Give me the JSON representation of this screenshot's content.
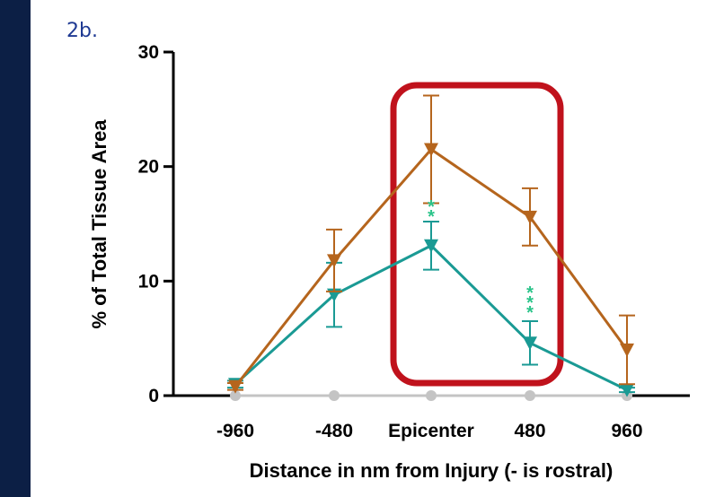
{
  "panel_label": "2b.",
  "chart_data": {
    "type": "line",
    "title": "",
    "xlabel": "Distance in nm from Injury (- is rostral)",
    "ylabel": "% of Total Tissue Area",
    "categories": [
      "-960",
      "-480",
      "Epicenter",
      "480",
      "960"
    ],
    "yticks": [
      0,
      10,
      20,
      30
    ],
    "ylim": [
      0,
      30
    ],
    "grid": false,
    "legend": "none",
    "series": [
      {
        "color": "#b5651d",
        "marker": "triangle-down",
        "values": [
          0.8,
          11.8,
          21.5,
          15.6,
          4.0
        ],
        "errors": [
          0.3,
          2.7,
          4.7,
          2.5,
          3.0
        ]
      },
      {
        "color": "#1a9a94",
        "marker": "triangle-down",
        "values": [
          1.0,
          8.8,
          13.1,
          4.6,
          0.5
        ],
        "errors": [
          0.3,
          2.8,
          2.1,
          1.9,
          0.2
        ]
      },
      {
        "color": "#c4c4c4",
        "marker": "circle",
        "values": [
          0,
          0,
          0,
          0,
          0
        ],
        "errors": [
          0,
          0,
          0,
          0,
          0
        ]
      }
    ],
    "annotations": [
      {
        "text": "**",
        "category": "Epicenter",
        "y": 15.6,
        "color": "#2bc48a"
      },
      {
        "text": "***",
        "category": "480",
        "y": 7.2,
        "color": "#2bc48a"
      }
    ],
    "highlight": {
      "from": "Epicenter",
      "to": "480",
      "color": "#c0121c"
    }
  }
}
